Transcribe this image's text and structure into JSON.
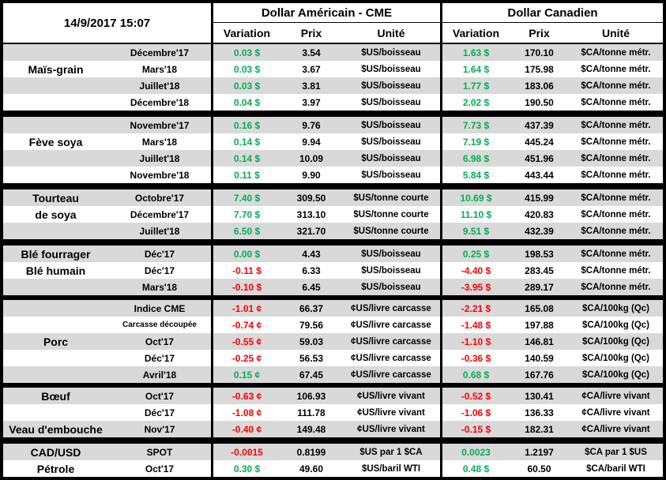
{
  "header": {
    "datetime": "14/9/2017 15:07",
    "usd_group": "Dollar Américain - CME",
    "cad_group": "Dollar Canadien",
    "col_variation": "Variation",
    "col_prix": "Prix",
    "col_unite": "Unité"
  },
  "colors": {
    "positive": "#00B050",
    "negative": "#FF0000",
    "stripe": "#D9D9D9",
    "border": "#000000"
  },
  "sections": [
    {
      "rows": [
        {
          "label": "",
          "contract": "Décembre'17",
          "us_var": "0.03 $",
          "us_prix": "3.54",
          "us_unit": "$US/boisseau",
          "ca_var": "1.63 $",
          "ca_prix": "170.10",
          "ca_unit": "$CA/tonne métr."
        },
        {
          "label": "Maïs-grain",
          "contract": "Mars'18",
          "us_var": "0.03 $",
          "us_prix": "3.67",
          "us_unit": "$US/boisseau",
          "ca_var": "1.64 $",
          "ca_prix": "175.98",
          "ca_unit": "$CA/tonne métr."
        },
        {
          "label": "",
          "contract": "Juillet'18",
          "us_var": "0.03 $",
          "us_prix": "3.81",
          "us_unit": "$US/boisseau",
          "ca_var": "1.77 $",
          "ca_prix": "183.06",
          "ca_unit": "$CA/tonne métr."
        },
        {
          "label": "",
          "contract": "Décembre'18",
          "us_var": "0.04 $",
          "us_prix": "3.97",
          "us_unit": "$US/boisseau",
          "ca_var": "2.02 $",
          "ca_prix": "190.50",
          "ca_unit": "$CA/tonne métr."
        }
      ]
    },
    {
      "rows": [
        {
          "label": "",
          "contract": "Novembre'17",
          "us_var": "0.16 $",
          "us_prix": "9.76",
          "us_unit": "$US/boisseau",
          "ca_var": "7.73 $",
          "ca_prix": "437.39",
          "ca_unit": "$CA/tonne métr."
        },
        {
          "label": "Fève soya",
          "contract": "Mars'18",
          "us_var": "0.14 $",
          "us_prix": "9.94",
          "us_unit": "$US/boisseau",
          "ca_var": "7.19 $",
          "ca_prix": "445.24",
          "ca_unit": "$CA/tonne métr."
        },
        {
          "label": "",
          "contract": "Juillet'18",
          "us_var": "0.14 $",
          "us_prix": "10.09",
          "us_unit": "$US/boisseau",
          "ca_var": "6.98 $",
          "ca_prix": "451.96",
          "ca_unit": "$CA/tonne métr."
        },
        {
          "label": "",
          "contract": "Novembre'18",
          "us_var": "0.11 $",
          "us_prix": "9.90",
          "us_unit": "$US/boisseau",
          "ca_var": "5.84 $",
          "ca_prix": "443.44",
          "ca_unit": "$CA/tonne métr."
        }
      ]
    },
    {
      "rows": [
        {
          "label": "Tourteau",
          "contract": "Octobre'17",
          "us_var": "7.40 $",
          "us_prix": "309.50",
          "us_unit": "$US/tonne courte",
          "ca_var": "10.69 $",
          "ca_prix": "415.99",
          "ca_unit": "$CA/tonne métr."
        },
        {
          "label": "de soya",
          "contract": "Décembre'17",
          "us_var": "7.70 $",
          "us_prix": "313.10",
          "us_unit": "$US/tonne courte",
          "ca_var": "11.10 $",
          "ca_prix": "420.83",
          "ca_unit": "$CA/tonne métr."
        },
        {
          "label": "",
          "contract": "Juillet'18",
          "us_var": "6.50 $",
          "us_prix": "321.70",
          "us_unit": "$US/tonne courte",
          "ca_var": "9.51 $",
          "ca_prix": "432.39",
          "ca_unit": "$CA/tonne métr."
        }
      ]
    },
    {
      "rows": [
        {
          "label": "Blé fourrager",
          "contract": "Déc'17",
          "us_var": "0.00 $",
          "us_prix": "4.43",
          "us_unit": "$US/boisseau",
          "ca_var": "0.25 $",
          "ca_prix": "198.53",
          "ca_unit": "$CA/tonne métr."
        },
        {
          "label": "Blé humain",
          "contract": "Déc'17",
          "us_var": "-0.11 $",
          "us_prix": "6.33",
          "us_unit": "$US/boisseau",
          "ca_var": "-4.40 $",
          "ca_prix": "283.45",
          "ca_unit": "$CA/tonne métr."
        },
        {
          "label": "",
          "contract": "Mars'18",
          "us_var": "-0.10 $",
          "us_prix": "6.45",
          "us_unit": "$US/boisseau",
          "ca_var": "-3.95 $",
          "ca_prix": "289.17",
          "ca_unit": "$CA/tonne métr."
        }
      ]
    },
    {
      "rows": [
        {
          "label": "",
          "contract": "Indice CME",
          "us_var": "-1.01 ¢",
          "us_prix": "66.37",
          "us_unit": "¢US/livre carcasse",
          "ca_var": "-2.21 $",
          "ca_prix": "165.08",
          "ca_unit": "$CA/100kg (Qc)"
        },
        {
          "label": "",
          "contract": "Carcasse découpée",
          "us_var": "-0.74 ¢",
          "us_prix": "79.56",
          "us_unit": "¢US/livre carcasse",
          "ca_var": "-1.48 $",
          "ca_prix": "197.88",
          "ca_unit": "$CA/100kg (Qc)"
        },
        {
          "label": "Porc",
          "contract": "Oct'17",
          "us_var": "-0.55 ¢",
          "us_prix": "59.03",
          "us_unit": "¢US/livre carcasse",
          "ca_var": "-1.10 $",
          "ca_prix": "146.81",
          "ca_unit": "$CA/100kg (Qc)"
        },
        {
          "label": "",
          "contract": "Déc'17",
          "us_var": "-0.25 ¢",
          "us_prix": "56.53",
          "us_unit": "¢US/livre carcasse",
          "ca_var": "-0.36 $",
          "ca_prix": "140.59",
          "ca_unit": "$CA/100kg (Qc)"
        },
        {
          "label": "",
          "contract": "Avril'18",
          "us_var": "0.15 ¢",
          "us_prix": "67.45",
          "us_unit": "¢US/livre carcasse",
          "ca_var": "0.68 $",
          "ca_prix": "167.76",
          "ca_unit": "$CA/100kg (Qc)"
        }
      ]
    },
    {
      "rows": [
        {
          "label": "Bœuf",
          "contract": "Oct'17",
          "us_var": "-0.63 ¢",
          "us_prix": "106.93",
          "us_unit": "¢US/livre vivant",
          "ca_var": "-0.52 $",
          "ca_prix": "130.41",
          "ca_unit": "¢CA/livre vivant"
        },
        {
          "label": "",
          "contract": "Déc'17",
          "us_var": "-1.08 ¢",
          "us_prix": "111.78",
          "us_unit": "¢US/livre vivant",
          "ca_var": "-1.06 $",
          "ca_prix": "136.33",
          "ca_unit": "¢CA/livre vivant"
        },
        {
          "label": "Veau d'embouche",
          "contract": "Nov'17",
          "us_var": "-0.40 ¢",
          "us_prix": "149.48",
          "us_unit": "¢US/livre vivant",
          "ca_var": "-0.15 $",
          "ca_prix": "182.31",
          "ca_unit": "¢CA/livre vivant"
        }
      ]
    },
    {
      "rows": [
        {
          "label": "CAD/USD",
          "contract": "SPOT",
          "us_var": "-0.0015",
          "us_prix": "0.8199",
          "us_unit": "$US par 1 $CA",
          "ca_var": "0.0023",
          "ca_prix": "1.2197",
          "ca_unit": "$CA par 1 $US"
        },
        {
          "label": "Pétrole",
          "contract": "Oct'17",
          "us_var": "0.30 $",
          "us_prix": "49.60",
          "us_unit": "$US/baril WTI",
          "ca_var": "0.48 $",
          "ca_prix": "60.50",
          "ca_unit": "$CA/baril WTI"
        }
      ]
    }
  ]
}
